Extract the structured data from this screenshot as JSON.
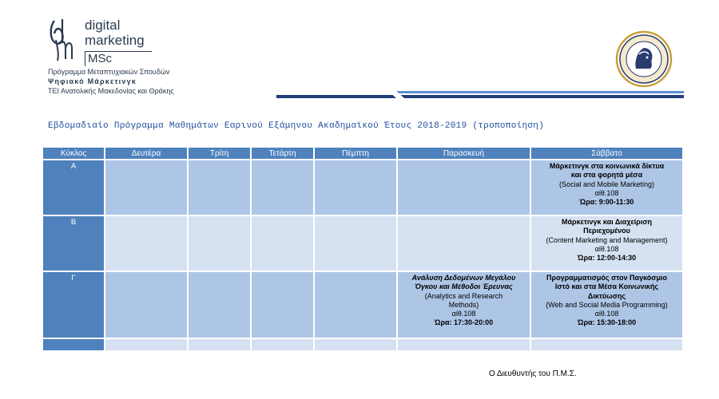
{
  "header": {
    "logo_line1": "digital",
    "logo_line2": "marketing",
    "logo_line3": "MSc",
    "org_line1": "Πρόγραμμα Μεταπτυχιακών Σπουδών",
    "org_line2": "Ψηφιακό Μάρκετινγκ",
    "org_line3": "ΤΕΙ Ανατολικής Μακεδονίας και Θράκης"
  },
  "title": "Εβδομαδιαίο Πρόγραμμα Μαθημάτων Εαρινού Εξάμηνου Ακαδημαϊκού Έτους 2018-2019 (τροποποίηση)",
  "table": {
    "headers": [
      "Κύκλος",
      "Δευτέρα",
      "Τρίτη",
      "Τετάρτη",
      "Πέμπτη",
      "Παρασκευή",
      "Σάββατο"
    ],
    "rows": [
      {
        "cycle": "Α",
        "saturday": {
          "title1": "Μάρκετινγκ στα κοινωνικά δίκτυα",
          "title2": "και στα φορητά μέσα",
          "en": "(Social and Mobile Marketing)",
          "room": "αίθ.108",
          "time": "Ώρα: 9:00-11:30"
        }
      },
      {
        "cycle": "Β",
        "saturday": {
          "title1": "Μάρκετινγκ και Διαχείριση",
          "title2": "Περιεχομένου",
          "en": "(Content Marketing and Management)",
          "room": "αίθ.108",
          "time": "Ώρα: 12:00-14:30"
        }
      },
      {
        "cycle": "Γ",
        "friday": {
          "title1": "Ανάλυση Δεδομένων Μεγάλου",
          "title2": "Όγκου και Μέθοδοι Έρευνας",
          "en1": "(Analytics and Research",
          "en2": "Methods)",
          "room": "αίθ.108",
          "time": "Ώρα: 17:30-20:00"
        },
        "saturday": {
          "title1": "Προγραμματισμός στον Παγκόσμιο",
          "title2": "Ιστό και στα Μέσα Κοινωνικής",
          "title3": "Δικτύωσης",
          "en": "(Web and Social Media Programming)",
          "room": "αίθ.108",
          "time": "Ώρα: 15:30-18:00"
        }
      }
    ]
  },
  "footer": {
    "director": "Ο Διευθυντής του Π.Μ.Σ."
  },
  "colors": {
    "header_blue": "#4f81bd",
    "cell_blue": "#aec6e6",
    "cell_light": "#d6e2f2",
    "title_blue": "#1f4e9c"
  }
}
